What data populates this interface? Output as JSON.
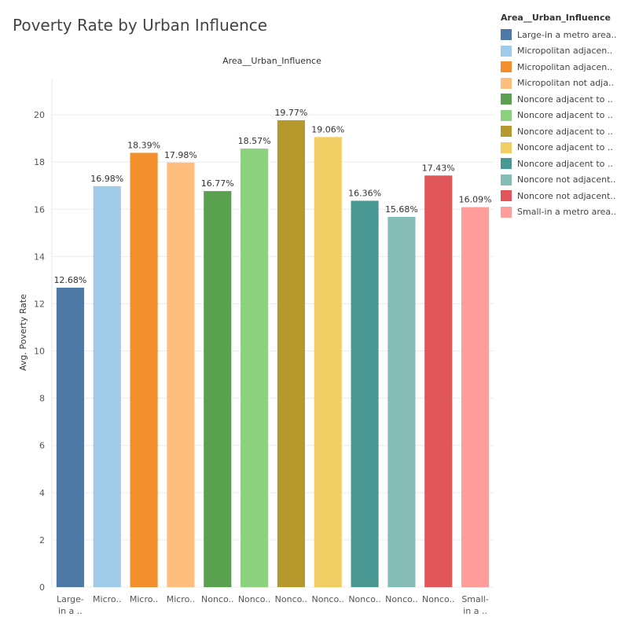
{
  "chart_data": {
    "type": "bar",
    "title": "Poverty Rate by Urban Influence",
    "header": "Area__Urban_Influence",
    "ylabel": "Avg. Poverty Rate",
    "ylim": [
      0,
      21.5
    ],
    "yticks": [
      0,
      2,
      4,
      6,
      8,
      10,
      12,
      14,
      16,
      18,
      20
    ],
    "grid": true,
    "categories": [
      [
        "Large-",
        "in a .."
      ],
      [
        "Micro.."
      ],
      [
        "Micro.."
      ],
      [
        "Micro.."
      ],
      [
        "Nonco.."
      ],
      [
        "Nonco.."
      ],
      [
        "Nonco.."
      ],
      [
        "Nonco.."
      ],
      [
        "Nonco.."
      ],
      [
        "Nonco.."
      ],
      [
        "Nonco.."
      ],
      [
        "Small-",
        "in a .."
      ]
    ],
    "values": [
      12.68,
      16.98,
      18.39,
      17.98,
      16.77,
      18.57,
      19.77,
      19.06,
      16.36,
      15.68,
      17.43,
      16.09
    ],
    "data_labels": [
      "12.68%",
      "16.98%",
      "18.39%",
      "17.98%",
      "16.77%",
      "18.57%",
      "19.77%",
      "19.06%",
      "16.36%",
      "15.68%",
      "17.43%",
      "16.09%"
    ],
    "colors": [
      "#4e79a7",
      "#a0cbe8",
      "#f28e2b",
      "#ffbe7d",
      "#59a14f",
      "#8cd17d",
      "#b6992d",
      "#f1ce63",
      "#499894",
      "#86bcb6",
      "#e15759",
      "#ff9d9a"
    ],
    "legend": {
      "title": "Area__Urban_Influence",
      "position": "top-right",
      "entries": [
        "Large-in a metro area..",
        "Micropolitan adjacen..",
        "Micropolitan adjacen..",
        "Micropolitan not adja..",
        "Noncore adjacent to ..",
        "Noncore adjacent to ..",
        "Noncore adjacent to ..",
        "Noncore adjacent to ..",
        "Noncore adjacent to ..",
        "Noncore not adjacent..",
        "Noncore not adjacent..",
        "Small-in a metro area.."
      ]
    }
  }
}
